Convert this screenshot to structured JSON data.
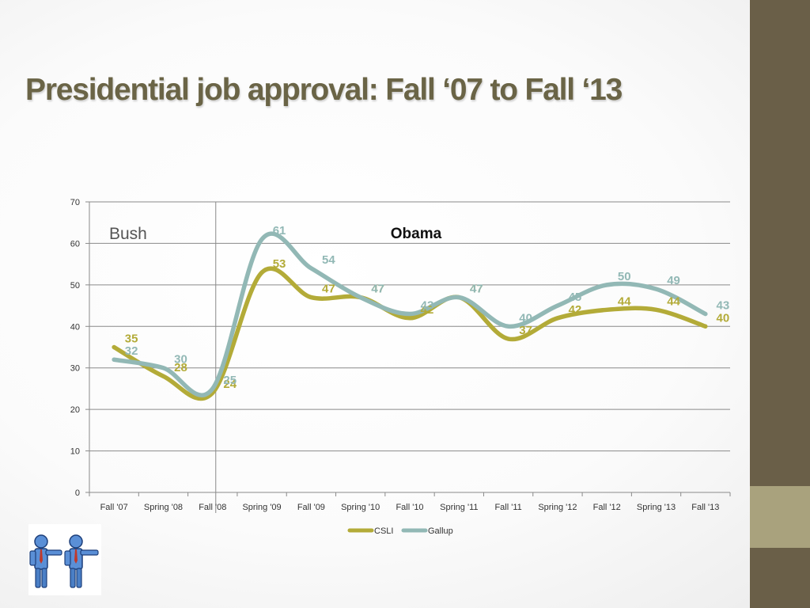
{
  "slide": {
    "title": "Presidential job approval: Fall ‘07 to Fall ‘13"
  },
  "chart_data": {
    "type": "line",
    "categories": [
      "Fall '07",
      "Spring '08",
      "Fall '08",
      "Spring '09",
      "Fall '09",
      "Spring '10",
      "Fall '10",
      "Spring '11",
      "Fall '11",
      "Spring '12",
      "Fall '12",
      "Spring '13",
      "Fall '13"
    ],
    "series": [
      {
        "name": "CSLI",
        "color": "#b3ab38",
        "values": [
          35,
          28,
          24,
          53,
          47,
          47,
          42,
          47,
          37,
          42,
          44,
          44,
          40
        ]
      },
      {
        "name": "Gallup",
        "color": "#92b8b5",
        "values": [
          32,
          30,
          25,
          61,
          54,
          47,
          43,
          47,
          40,
          45,
          50,
          49,
          43
        ]
      }
    ],
    "ylim": [
      0,
      70
    ],
    "yticks": [
      0,
      10,
      20,
      30,
      40,
      50,
      60,
      70
    ],
    "grid": true,
    "legend": "bottom",
    "annotations": [
      "Bush",
      "Obama"
    ],
    "divider_after_category": "Fall '08"
  },
  "icons": {
    "clipart": "two-businessmen-pointing-icon"
  }
}
